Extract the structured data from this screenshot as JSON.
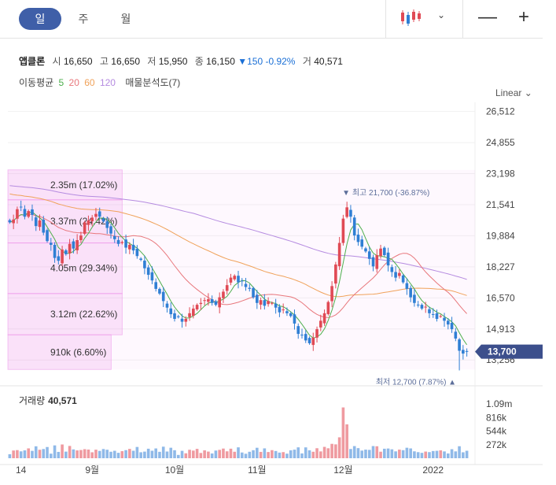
{
  "tabs": [
    {
      "label": "일"
    },
    {
      "label": "주"
    },
    {
      "label": "월"
    }
  ],
  "toolbar": {
    "chevron": "⌄",
    "minus": "—",
    "plus": "+"
  },
  "quote": {
    "name": "앱클론",
    "open_label": "시",
    "open": "16,650",
    "high_label": "고",
    "high": "16,650",
    "low_label": "저",
    "low": "15,950",
    "close_label": "종",
    "close": "16,150",
    "change": "▼150 -0.92%",
    "vol_label": "거",
    "volume": "40,571"
  },
  "ma": {
    "label": "이동평균",
    "p5": "5",
    "p20": "20",
    "p60": "60",
    "p120": "120",
    "extra": "매물분석도(7)"
  },
  "scale_label": "Linear",
  "colors": {
    "up": "#e04a55",
    "down": "#2f7fd4",
    "ma5": "#4cae4c",
    "ma20": "#e8777c",
    "ma60": "#f0a25a",
    "ma120": "#b58be0",
    "profile": "#ec88e6",
    "badge": "#3c4f8c"
  },
  "volume_panel": {
    "label": "거래량",
    "value": "40,571"
  },
  "chart_data": {
    "type": "candlestick",
    "y_ticks": [
      "26,512",
      "24,855",
      "23,198",
      "21,541",
      "19,884",
      "18,227",
      "16,570",
      "14,913",
      "13,256"
    ],
    "ylim": [
      12300,
      27000
    ],
    "x_ticks": [
      "14",
      "9월",
      "10월",
      "11월",
      "12월",
      "2022"
    ],
    "last_price_badge": "13,700",
    "high_marker": {
      "label": "최고",
      "value": "21,700 (-36.87%)"
    },
    "low_marker": {
      "label": "최저",
      "value": "12,700 (7.87%)"
    },
    "volume_ticks": [
      "1.09m",
      "816k",
      "544k",
      "272k"
    ],
    "volume_ylim": [
      0,
      1360000
    ],
    "volume_profile": [
      {
        "low": 21800,
        "high": 23400,
        "label": "2.35m (17.02%)"
      },
      {
        "low": 19500,
        "high": 21800,
        "label": "3.37m (24.42%)"
      },
      {
        "low": 16800,
        "high": 19500,
        "label": "4.05m (29.34%)"
      },
      {
        "low": 14600,
        "high": 16800,
        "label": "3.12m (22.62%)"
      },
      {
        "low": 12750,
        "high": 14600,
        "label": "910k (6.60%)"
      }
    ],
    "close_series": [
      20600,
      20750,
      21300,
      21400,
      20900,
      21200,
      21000,
      20400,
      20700,
      20050,
      19600,
      19400,
      18700,
      18550,
      19150,
      18900,
      19450,
      19200,
      19650,
      19900,
      20600,
      20700,
      20850,
      21050,
      20900,
      20650,
      20300,
      20000,
      19700,
      19450,
      19550,
      19250,
      19400,
      19100,
      18800,
      18600,
      18150,
      17800,
      17500,
      17050,
      16800,
      16400,
      16050,
      15700,
      15450,
      15550,
      15300,
      15450,
      15750,
      16000,
      16200,
      16300,
      16450,
      16500,
      16300,
      16200,
      16600,
      16900,
      17250,
      17650,
      17750,
      17400,
      17450,
      17150,
      17050,
      16600,
      16300,
      16450,
      16150,
      16400,
      16300,
      16050,
      15800,
      15950,
      15750,
      15600,
      15200,
      14650,
      14600,
      14300,
      14150,
      14450,
      14900,
      15350,
      15750,
      16350,
      17200,
      18350,
      19500,
      20800,
      21400,
      20900,
      19900,
      19550,
      19300,
      19050,
      18650,
      18250,
      18850,
      19200,
      18850,
      18300,
      17950,
      17650,
      17900,
      17400,
      17050,
      16600,
      16300,
      16200,
      16000,
      16100,
      15750,
      15700,
      15450,
      15600,
      15350,
      15150,
      14900,
      14400,
      13750,
      13600,
      13700
    ]
  }
}
